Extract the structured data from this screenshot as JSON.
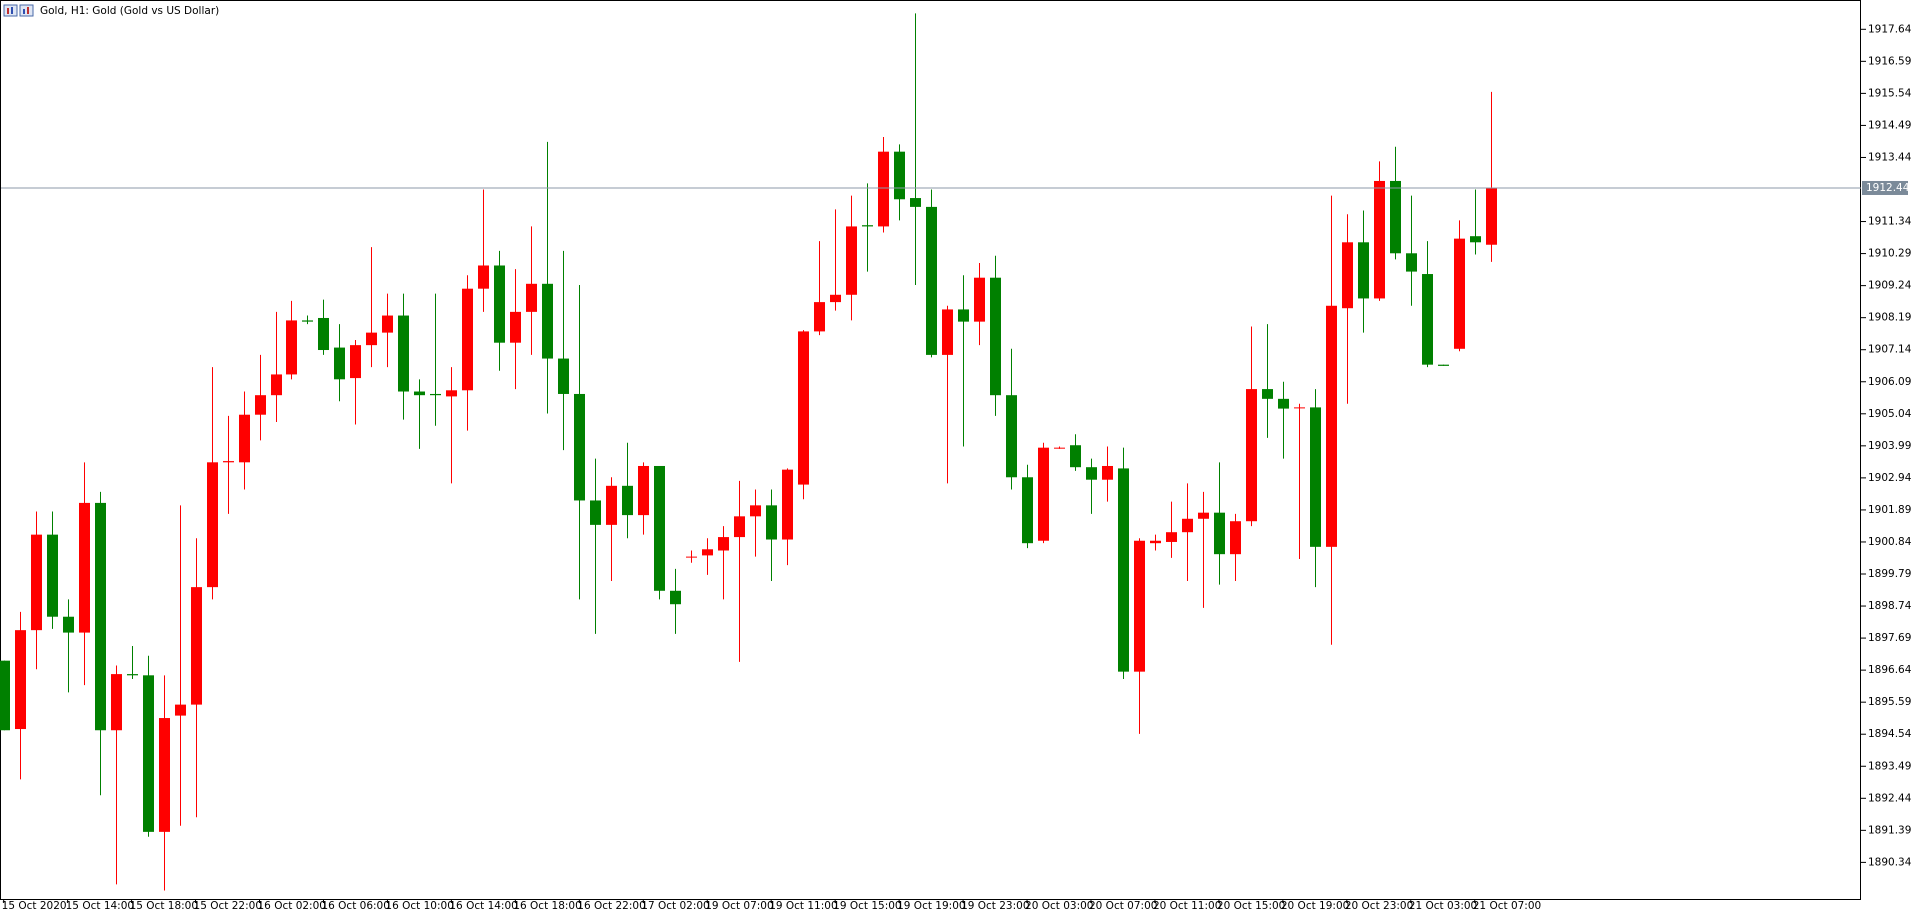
{
  "chart_data": {
    "type": "candlestick",
    "title": "Gold, H1:  Gold (Gold vs US Dollar)",
    "categories": [
      "15 Oct 2020",
      null,
      null,
      null,
      "15 Oct 14:00",
      null,
      null,
      null,
      "15 Oct 18:00",
      null,
      null,
      null,
      "15 Oct 22:00",
      null,
      null,
      null,
      "16 Oct 02:00",
      null,
      null,
      null,
      "16 Oct 06:00",
      null,
      null,
      null,
      "16 Oct 10:00",
      null,
      null,
      null,
      "16 Oct 14:00",
      null,
      null,
      null,
      "16 Oct 18:00",
      null,
      null,
      null,
      "16 Oct 22:00",
      null,
      null,
      null,
      "17 Oct 02:00",
      null,
      null,
      null,
      "19 Oct 07:00",
      null,
      null,
      null,
      "19 Oct 11:00",
      null,
      null,
      null,
      "19 Oct 15:00",
      null,
      null,
      null,
      "19 Oct 19:00",
      null,
      null,
      null,
      "19 Oct 23:00",
      null,
      null,
      null,
      "20 Oct 03:00",
      null,
      null,
      null,
      "20 Oct 07:00",
      null,
      null,
      null,
      "20 Oct 11:00",
      null,
      null,
      null,
      "20 Oct 15:00",
      null,
      null,
      null,
      "20 Oct 19:00",
      null,
      null,
      null,
      "20 Oct 23:00",
      null,
      null,
      null,
      "21 Oct 03:00",
      null,
      null,
      null,
      "21 Oct 07:00",
      null
    ],
    "open": [
      1896.95,
      1894.71,
      1897.95,
      1901.08,
      1898.39,
      1897.87,
      1902.12,
      1894.67,
      1896.51,
      1896.47,
      1891.34,
      1895.15,
      1895.51,
      1899.36,
      1903.45,
      1903.45,
      1905.01,
      1905.65,
      1906.33,
      1908.1,
      1908.18,
      1907.21,
      1906.21,
      1907.29,
      1907.7,
      1908.26,
      1905.77,
      1905.69,
      1905.61,
      1905.81,
      1909.14,
      1909.9,
      1907.37,
      1908.38,
      1909.3,
      1906.85,
      1905.69,
      1902.2,
      1901.4,
      1902.68,
      1901.72,
      1903.33,
      1899.24,
      1900.36,
      1900.4,
      1900.56,
      1901.0,
      1901.68,
      1902.04,
      1900.92,
      1902.72,
      1907.74,
      1908.7,
      1908.94,
      1911.22,
      1911.18,
      1913.63,
      1912.11,
      1911.82,
      1906.97,
      1908.46,
      1908.06,
      1909.5,
      1905.65,
      1902.96,
      1900.88,
      1903.93,
      1904.01,
      1903.29,
      1902.88,
      1903.25,
      1896.59,
      1900.8,
      1900.84,
      1901.16,
      1901.6,
      1901.8,
      1900.44,
      1901.52,
      1905.85,
      1905.53,
      1905.25,
      1905.25,
      1900.68,
      1908.5,
      1910.66,
      1908.82,
      1912.67,
      1910.3,
      1909.62,
      1906.65,
      1907.17,
      1910.86,
      1910.58
    ],
    "high": [
      1896.95,
      1898.55,
      1901.84,
      1901.84,
      1898.96,
      1903.45,
      1902.48,
      1896.79,
      1897.43,
      1897.11,
      1896.47,
      1902.04,
      1900.96,
      1906.57,
      1904.97,
      1905.77,
      1906.97,
      1908.38,
      1908.74,
      1908.26,
      1908.78,
      1907.98,
      1907.46,
      1910.5,
      1908.98,
      1908.98,
      1906.17,
      1908.98,
      1906.57,
      1909.58,
      1912.39,
      1910.38,
      1909.78,
      1911.18,
      1913.95,
      1910.38,
      1909.26,
      1903.57,
      1902.96,
      1904.09,
      1903.45,
      1903.33,
      1899.96,
      1900.56,
      1900.96,
      1901.36,
      1902.84,
      1902.56,
      1902.56,
      1903.25,
      1907.78,
      1910.7,
      1911.74,
      1912.19,
      1912.59,
      1914.11,
      1913.87,
      1918.16,
      1912.39,
      1908.58,
      1909.58,
      1909.98,
      1910.22,
      1907.17,
      1903.37,
      1904.09,
      1903.97,
      1904.37,
      1903.57,
      1903.97,
      1903.93,
      1900.96,
      1901.08,
      1902.16,
      1902.76,
      1902.48,
      1903.45,
      1901.76,
      1907.9,
      1907.98,
      1906.09,
      1905.37,
      1905.85,
      1912.19,
      1911.58,
      1911.7,
      1913.31,
      1913.79,
      1912.19,
      1910.7,
      1906.65,
      1911.38,
      1912.39,
      1915.59
    ],
    "low": [
      1894.67,
      1893.06,
      1896.67,
      1897.99,
      1895.91,
      1896.15,
      1892.54,
      1889.62,
      1896.35,
      1891.18,
      1889.42,
      1891.54,
      1891.82,
      1898.96,
      1901.76,
      1902.56,
      1904.17,
      1904.77,
      1906.17,
      1907.98,
      1906.97,
      1905.45,
      1904.69,
      1906.57,
      1906.57,
      1904.85,
      1903.89,
      1904.65,
      1902.76,
      1904.49,
      1908.38,
      1906.45,
      1905.85,
      1906.97,
      1905.05,
      1903.85,
      1898.96,
      1897.83,
      1899.56,
      1900.96,
      1901.08,
      1898.96,
      1897.83,
      1900.16,
      1899.76,
      1898.96,
      1896.91,
      1900.36,
      1899.56,
      1900.08,
      1902.24,
      1907.62,
      1908.42,
      1908.1,
      1909.7,
      1910.98,
      1911.38,
      1909.26,
      1906.89,
      1902.76,
      1903.97,
      1907.29,
      1904.97,
      1902.56,
      1900.64,
      1900.8,
      1903.89,
      1903.17,
      1901.76,
      1902.16,
      1896.35,
      1894.55,
      1900.56,
      1900.32,
      1899.56,
      1898.68,
      1899.44,
      1899.56,
      1901.36,
      1904.25,
      1903.57,
      1900.28,
      1899.36,
      1897.47,
      1905.37,
      1907.7,
      1908.74,
      1910.1,
      1908.58,
      1906.57,
      1906.61,
      1907.09,
      1910.26,
      1910.02
    ],
    "close": [
      1894.67,
      1897.95,
      1901.08,
      1898.39,
      1897.87,
      1902.12,
      1894.67,
      1896.51,
      1896.47,
      1891.34,
      1895.07,
      1895.51,
      1899.36,
      1903.45,
      1903.49,
      1905.01,
      1905.65,
      1906.33,
      1908.1,
      1908.06,
      1907.13,
      1906.17,
      1907.29,
      1907.7,
      1908.26,
      1905.77,
      1905.65,
      1905.65,
      1905.81,
      1909.14,
      1909.9,
      1907.37,
      1908.38,
      1909.3,
      1906.85,
      1905.69,
      1902.2,
      1901.4,
      1902.68,
      1901.72,
      1903.33,
      1899.24,
      1898.8,
      1900.36,
      1900.6,
      1901.0,
      1901.68,
      1902.04,
      1900.92,
      1903.21,
      1907.74,
      1908.7,
      1908.94,
      1911.18,
      1911.18,
      1913.63,
      1912.07,
      1911.82,
      1906.97,
      1908.46,
      1908.06,
      1909.5,
      1905.65,
      1902.96,
      1900.8,
      1903.93,
      1903.93,
      1903.29,
      1902.88,
      1903.33,
      1896.59,
      1900.88,
      1900.88,
      1901.16,
      1901.6,
      1901.8,
      1900.44,
      1901.52,
      1905.85,
      1905.53,
      1905.21,
      1905.25,
      1900.68,
      1908.58,
      1910.66,
      1908.82,
      1912.67,
      1910.3,
      1909.7,
      1906.65,
      1906.61,
      1910.78,
      1910.66,
      1912.44
    ],
    "colors": {
      "up": "#ff0000",
      "down": "#008000"
    },
    "current_price": 1912.44,
    "ylim": [
      1889.14,
      1918.6
    ],
    "yticks": [
      1917.64,
      1916.59,
      1915.54,
      1914.49,
      1913.44,
      1911.34,
      1910.29,
      1909.24,
      1908.19,
      1907.14,
      1906.09,
      1905.04,
      1903.99,
      1902.94,
      1901.89,
      1900.84,
      1899.79,
      1898.74,
      1897.69,
      1896.64,
      1895.59,
      1894.54,
      1893.49,
      1892.44,
      1891.39,
      1890.34
    ]
  }
}
